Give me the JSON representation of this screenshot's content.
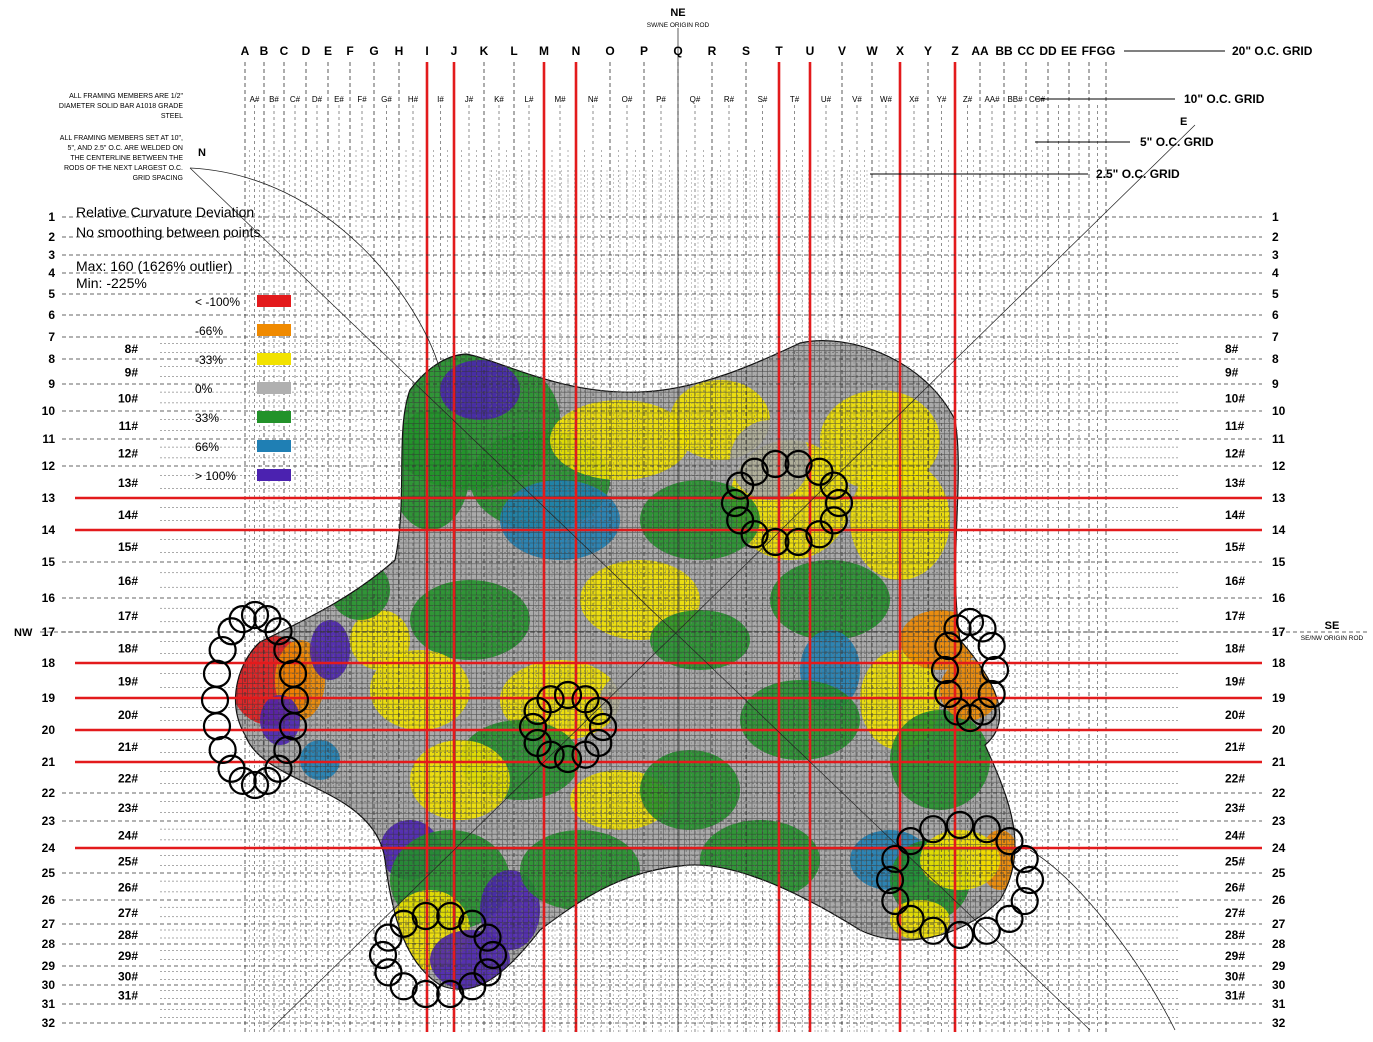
{
  "compass": {
    "ne": "NE",
    "ne_sub": "SW/NE ORIGIN ROD",
    "se": "SE",
    "se_sub": "SE/NW ORIGIN ROD",
    "nw": "NW",
    "n": "N",
    "e": "E"
  },
  "grid_labels": {
    "g20": "20\" O.C. GRID",
    "g10": "10\" O.C. GRID",
    "g5": "5\" O.C. GRID",
    "g25": "2.5\" O.C. GRID"
  },
  "notes": {
    "n1": [
      "ALL FRAMING MEMBERS ARE 1/2\"",
      "DIAMETER SOLID BAR A1018 GRADE",
      "STEEL"
    ],
    "n2": [
      "ALL FRAMING MEMBERS SET AT 10\",",
      "5\", AND 2.5\" O.C. ARE WELDED ON",
      "THE CENTERLINE BETWEEN THE",
      "RODS OF THE NEXT LARGEST O.C.",
      "GRID SPACING"
    ]
  },
  "legend": {
    "title": "Relative Curvature Deviation",
    "subtitle": "No smoothing between points",
    "max": "Max: 160 (1626% outlier)",
    "min": "Min: -225%",
    "items": [
      {
        "label": "< -100%",
        "color": "#e31a1c"
      },
      {
        "label": "-66%",
        "color": "#f08a00"
      },
      {
        "label": "-33%",
        "color": "#f2e200"
      },
      {
        "label": "0%",
        "color": "#b0b0b0"
      },
      {
        "label": "33%",
        "color": "#22922a"
      },
      {
        "label": "66%",
        "color": "#1f7fb4"
      },
      {
        "label": "> 100%",
        "color": "#4b22b0"
      }
    ]
  },
  "columns20": [
    "A",
    "B",
    "C",
    "D",
    "E",
    "F",
    "G",
    "H",
    "I",
    "J",
    "K",
    "L",
    "M",
    "N",
    "O",
    "P",
    "Q",
    "R",
    "S",
    "T",
    "U",
    "V",
    "W",
    "X",
    "Y",
    "Z",
    "AA",
    "BB",
    "CC",
    "DD",
    "EE",
    "FF",
    "GG"
  ],
  "columns10": [
    "A#",
    "B#",
    "C#",
    "D#",
    "E#",
    "F#",
    "G#",
    "H#",
    "I#",
    "J#",
    "K#",
    "L#",
    "M#",
    "N#",
    "O#",
    "P#",
    "Q#",
    "R#",
    "S#",
    "T#",
    "U#",
    "V#",
    "W#",
    "X#",
    "Y#",
    "Z#",
    "AA#",
    "BB#",
    "CC#"
  ],
  "rows": [
    "1",
    "2",
    "3",
    "4",
    "5",
    "6",
    "7",
    "8",
    "9",
    "10",
    "11",
    "12",
    "13",
    "14",
    "15",
    "16",
    "17",
    "18",
    "19",
    "20",
    "21",
    "22",
    "23",
    "24",
    "25",
    "26",
    "27",
    "28",
    "29",
    "30",
    "31",
    "32"
  ],
  "half_rows": [
    "8#",
    "9#",
    "10#",
    "11#",
    "12#",
    "13#",
    "14#",
    "15#",
    "16#",
    "17#",
    "18#",
    "19#",
    "20#",
    "21#",
    "22#",
    "23#",
    "24#",
    "25#",
    "26#",
    "27#",
    "28#",
    "29#",
    "30#",
    "31#"
  ],
  "red_columns": [
    "I",
    "J",
    "M",
    "N",
    "T",
    "U",
    "X",
    "Z"
  ],
  "red_rows": [
    "13",
    "14",
    "18",
    "19",
    "20",
    "21",
    "24"
  ],
  "colors": {
    "red_rod": "#e31a1c",
    "grid": "#333333",
    "fine_grid": "#555555"
  }
}
